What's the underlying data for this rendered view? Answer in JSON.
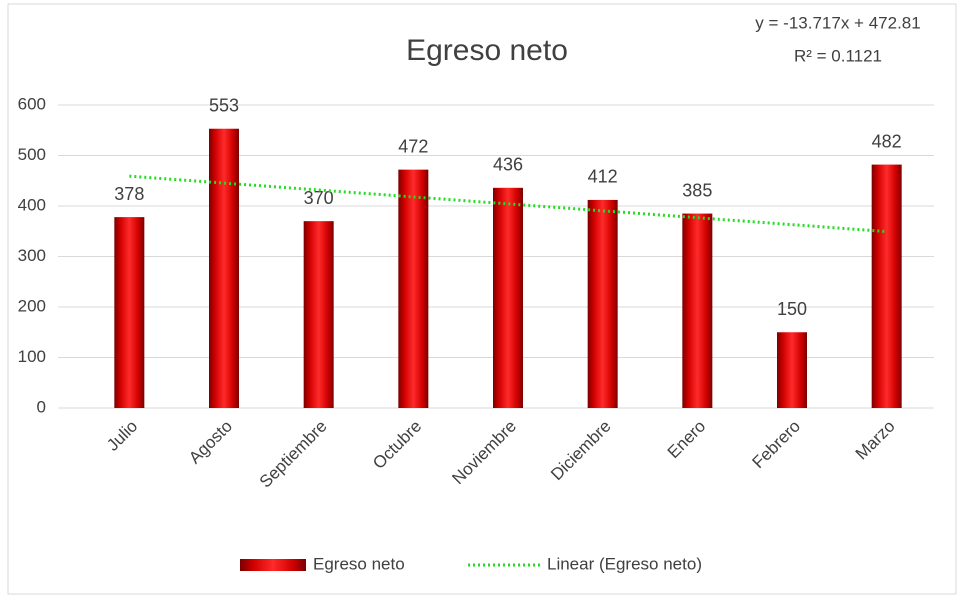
{
  "chart_data": {
    "type": "bar",
    "title": "Egreso neto",
    "categories": [
      "Julio",
      "Agosto",
      "Septiembre",
      "Octubre",
      "Noviembre",
      "Diciembre",
      "Enero",
      "Febrero",
      "Marzo"
    ],
    "series": [
      {
        "name": "Egreso neto",
        "color": "#e00000",
        "values": [
          378,
          553,
          370,
          472,
          436,
          412,
          385,
          150,
          482
        ]
      }
    ],
    "ylim": [
      0,
      600
    ],
    "yticks": [
      0,
      100,
      200,
      300,
      400,
      500,
      600
    ],
    "grid": true,
    "legend": "bottom",
    "trendline": {
      "name": "Linear (Egreso neto)",
      "color": "#22dd22",
      "slope": -13.717,
      "intercept": 472.81,
      "r2": 0.1121,
      "equation_label": "y = -13.717x + 472.81",
      "r2_label": "R² = 0.1121"
    }
  }
}
